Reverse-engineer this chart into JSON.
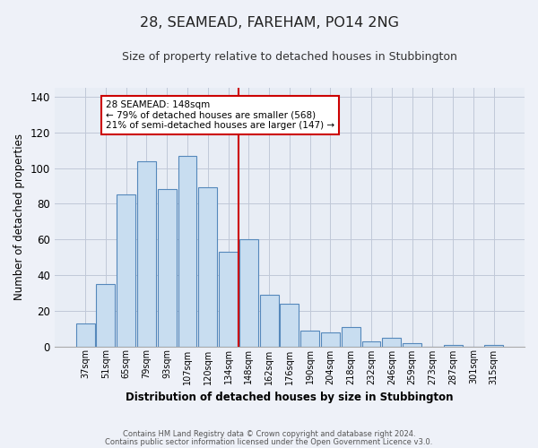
{
  "title": "28, SEAMEAD, FAREHAM, PO14 2NG",
  "subtitle": "Size of property relative to detached houses in Stubbington",
  "xlabel": "Distribution of detached houses by size in Stubbington",
  "ylabel": "Number of detached properties",
  "bar_labels": [
    "37sqm",
    "51sqm",
    "65sqm",
    "79sqm",
    "93sqm",
    "107sqm",
    "120sqm",
    "134sqm",
    "148sqm",
    "162sqm",
    "176sqm",
    "190sqm",
    "204sqm",
    "218sqm",
    "232sqm",
    "246sqm",
    "259sqm",
    "273sqm",
    "287sqm",
    "301sqm",
    "315sqm"
  ],
  "bar_heights": [
    13,
    35,
    85,
    104,
    88,
    107,
    89,
    53,
    60,
    29,
    24,
    9,
    8,
    11,
    3,
    5,
    2,
    0,
    1,
    0,
    1
  ],
  "bar_color": "#c8ddf0",
  "bar_edge_color": "#5588bb",
  "vline_color": "#cc0000",
  "annotation_text": "28 SEAMEAD: 148sqm\n← 79% of detached houses are smaller (568)\n21% of semi-detached houses are larger (147) →",
  "annotation_box_color": "#ffffff",
  "annotation_box_edge_color": "#cc0000",
  "ylim": [
    0,
    145
  ],
  "yticks": [
    0,
    20,
    40,
    60,
    80,
    100,
    120,
    140
  ],
  "footnote1": "Contains HM Land Registry data © Crown copyright and database right 2024.",
  "footnote2": "Contains public sector information licensed under the Open Government Licence v3.0.",
  "bg_color": "#eef1f8",
  "plot_bg_color": "#e8edf5"
}
